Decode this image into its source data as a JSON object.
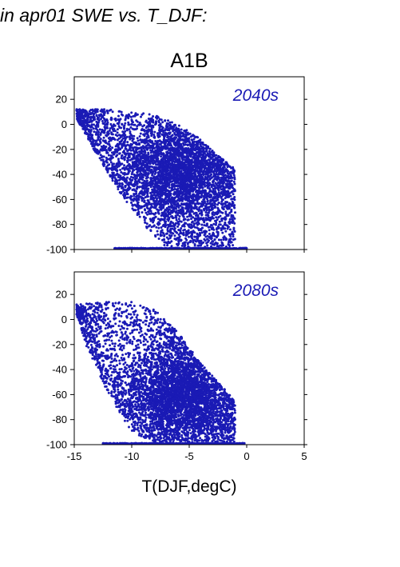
{
  "heading": "in apr01 SWE vs. T_DJF:",
  "colors": {
    "points": "#1a1ab5",
    "frame": "#000000"
  },
  "chart_data": [
    {
      "type": "scatter",
      "title": "A1B",
      "annotation": "2040s",
      "xlim": [
        -15,
        5
      ],
      "ylim": [
        -100,
        38
      ],
      "xticks": [
        -15,
        -10,
        -5,
        0,
        5
      ],
      "yticks": [
        -100,
        -80,
        -60,
        -40,
        -20,
        0,
        20
      ],
      "xlabel": "",
      "ylabel": "",
      "show_x_tick_labels": false,
      "cloud": {
        "x_range": [
          -14.8,
          -1.0
        ],
        "upper_envelope": [
          [
            -15,
            12
          ],
          [
            -12,
            12
          ],
          [
            -10,
            10
          ],
          [
            -8,
            8
          ],
          [
            -6,
            0
          ],
          [
            -4,
            -12
          ],
          [
            -2.5,
            -25
          ],
          [
            -1,
            -35
          ]
        ],
        "lower_envelope": [
          [
            -15,
            8
          ],
          [
            -13,
            -25
          ],
          [
            -11,
            -55
          ],
          [
            -9,
            -80
          ],
          [
            -7,
            -98
          ],
          [
            -1,
            -98
          ]
        ],
        "density_center": [
          -6,
          -35
        ],
        "floor_value": -100,
        "floor_x_range": [
          -11.5,
          0
        ]
      }
    },
    {
      "type": "scatter",
      "title": "",
      "annotation": "2080s",
      "xlim": [
        -15,
        5
      ],
      "ylim": [
        -100,
        38
      ],
      "xticks": [
        -15,
        -10,
        -5,
        0,
        5
      ],
      "yticks": [
        -100,
        -80,
        -60,
        -40,
        -20,
        0,
        20
      ],
      "xlabel": "T(DJF,degC)",
      "ylabel": "",
      "show_x_tick_labels": true,
      "cloud": {
        "x_range": [
          -14.8,
          -1.0
        ],
        "upper_envelope": [
          [
            -15,
            12
          ],
          [
            -12,
            14
          ],
          [
            -10,
            14
          ],
          [
            -8,
            8
          ],
          [
            -6,
            -10
          ],
          [
            -4,
            -35
          ],
          [
            -2,
            -55
          ],
          [
            -1,
            -65
          ]
        ],
        "lower_envelope": [
          [
            -15,
            10
          ],
          [
            -14,
            -20
          ],
          [
            -12,
            -60
          ],
          [
            -10,
            -90
          ],
          [
            -8,
            -98
          ],
          [
            -1,
            -98
          ]
        ],
        "density_center": [
          -6,
          -60
        ],
        "floor_value": -100,
        "floor_x_range": [
          -12.5,
          -0.2
        ]
      }
    }
  ]
}
